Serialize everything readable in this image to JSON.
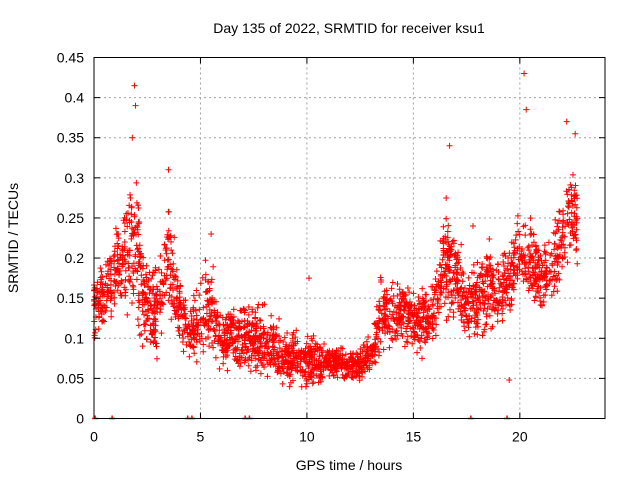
{
  "chart_data": {
    "type": "scatter",
    "title": "Day 135 of 2022, SRMTID for receiver ksu1",
    "xlabel": "GPS time / hours",
    "ylabel": "SRMTID / TECUs",
    "xlim": [
      0,
      24
    ],
    "ylim": [
      0,
      0.45
    ],
    "xticks": [
      0,
      5,
      10,
      15,
      20
    ],
    "yticks": [
      0,
      0.05,
      0.1,
      0.15,
      0.2,
      0.25,
      0.3,
      0.35,
      0.4,
      0.45
    ],
    "xtick_labels": [
      "0",
      "5",
      "10",
      "15",
      "20"
    ],
    "ytick_labels": [
      "0",
      "0.05",
      "0.1",
      "0.15",
      "0.2",
      "0.25",
      "0.3",
      "0.35",
      "0.4",
      "0.45"
    ],
    "grid": true,
    "marker": "plus",
    "color": "#ff0000",
    "series": [
      {
        "name": "SRMTID",
        "envelope": [
          [
            0.0,
            0.08,
            0.2
          ],
          [
            0.5,
            0.1,
            0.2
          ],
          [
            1.0,
            0.12,
            0.26
          ],
          [
            1.5,
            0.12,
            0.3
          ],
          [
            2.0,
            0.08,
            0.33
          ],
          [
            2.5,
            0.05,
            0.2
          ],
          [
            3.0,
            0.05,
            0.22
          ],
          [
            3.5,
            0.1,
            0.3
          ],
          [
            4.0,
            0.07,
            0.2
          ],
          [
            4.5,
            0.06,
            0.15
          ],
          [
            5.0,
            0.06,
            0.19
          ],
          [
            5.5,
            0.06,
            0.22
          ],
          [
            6.0,
            0.05,
            0.14
          ],
          [
            7.0,
            0.05,
            0.16
          ],
          [
            8.0,
            0.04,
            0.15
          ],
          [
            9.0,
            0.03,
            0.12
          ],
          [
            10.0,
            0.03,
            0.12
          ],
          [
            11.0,
            0.04,
            0.1
          ],
          [
            12.0,
            0.04,
            0.09
          ],
          [
            13.0,
            0.04,
            0.11
          ],
          [
            13.5,
            0.07,
            0.2
          ],
          [
            14.0,
            0.08,
            0.18
          ],
          [
            15.0,
            0.08,
            0.18
          ],
          [
            15.5,
            0.07,
            0.17
          ],
          [
            16.0,
            0.08,
            0.2
          ],
          [
            16.5,
            0.1,
            0.3
          ],
          [
            17.0,
            0.1,
            0.25
          ],
          [
            17.5,
            0.08,
            0.2
          ],
          [
            18.0,
            0.09,
            0.22
          ],
          [
            18.5,
            0.09,
            0.24
          ],
          [
            19.0,
            0.1,
            0.21
          ],
          [
            19.5,
            0.12,
            0.23
          ],
          [
            20.0,
            0.14,
            0.27
          ],
          [
            20.5,
            0.13,
            0.26
          ],
          [
            21.0,
            0.12,
            0.23
          ],
          [
            21.5,
            0.13,
            0.25
          ],
          [
            22.0,
            0.15,
            0.32
          ],
          [
            22.5,
            0.18,
            0.33
          ],
          [
            22.7,
            0.17,
            0.3
          ]
        ],
        "notable_points": [
          [
            1.9,
            0.415
          ],
          [
            1.95,
            0.39
          ],
          [
            1.8,
            0.35
          ],
          [
            3.5,
            0.31
          ],
          [
            5.5,
            0.23
          ],
          [
            10.1,
            0.175
          ],
          [
            16.7,
            0.34
          ],
          [
            17.8,
            0.24
          ],
          [
            20.2,
            0.43
          ],
          [
            20.3,
            0.385
          ],
          [
            22.2,
            0.37
          ],
          [
            22.6,
            0.355
          ],
          [
            19.5,
            0.048
          ]
        ],
        "zero_points": [
          0.05,
          0.85,
          4.4,
          4.6,
          7.1,
          7.3,
          17.7,
          19.4
        ]
      }
    ]
  }
}
